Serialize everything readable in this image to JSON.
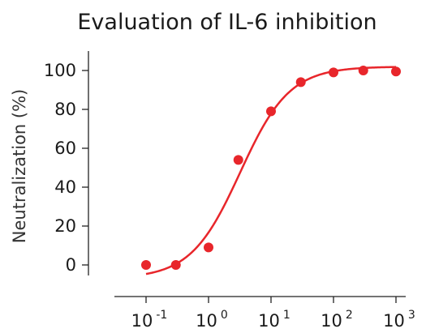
{
  "chart_data": {
    "type": "scatter",
    "title": "Evaluation of IL-6 inhibition",
    "xlabel": "",
    "ylabel": "Neutralization (%)",
    "x_scale": "log",
    "xlim": [
      0.08,
      1200
    ],
    "ylim": [
      -8,
      108
    ],
    "yticks": [
      0,
      20,
      40,
      60,
      80,
      100
    ],
    "xticks": [
      {
        "value": 0.1,
        "base": "10",
        "exp": "-1"
      },
      {
        "value": 1,
        "base": "10",
        "exp": "0"
      },
      {
        "value": 10,
        "base": "10",
        "exp": "1"
      },
      {
        "value": 100,
        "base": "10",
        "exp": "2"
      },
      {
        "value": 1000,
        "base": "10",
        "exp": "3"
      }
    ],
    "series": [
      {
        "points": [
          {
            "x": 0.1,
            "y": 0
          },
          {
            "x": 0.3,
            "y": 0
          },
          {
            "x": 1,
            "y": 9
          },
          {
            "x": 3,
            "y": 54
          },
          {
            "x": 10,
            "y": 79
          },
          {
            "x": 30,
            "y": 94
          },
          {
            "x": 100,
            "y": 99
          },
          {
            "x": 300,
            "y": 100
          },
          {
            "x": 1000,
            "y": 99.5
          }
        ],
        "fit": {
          "model": "4PL",
          "bottom": -7,
          "top": 102,
          "ec50": 3.2,
          "hill": 1.1
        }
      }
    ],
    "color": "#e8262b",
    "grid": false,
    "legend": "none"
  }
}
